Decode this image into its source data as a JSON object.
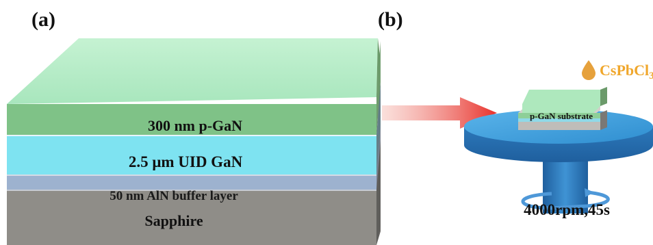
{
  "panel_a": {
    "label": "(a)",
    "layers": [
      {
        "name": "300 nm p-GaN"
      },
      {
        "name": "2.5 μm UID GaN"
      },
      {
        "name": "50 nm AlN buffer layer"
      },
      {
        "name": "Sapphire"
      }
    ]
  },
  "panel_b": {
    "label": "(b)",
    "precursor_main": "CsPbCl",
    "precursor_sub": "3",
    "substrate_label": "p-GaN substrate",
    "spin_params": "4000rpm,45s"
  },
  "colors": {
    "p_gan_top": "#b9ecc8",
    "p_gan_front": "#7fc287",
    "p_gan_side": "#6b9a6a",
    "uid_gan_front": "#7ee3f1",
    "uid_gan_side": "#5f8b9b",
    "aln_front": "#9db2cf",
    "aln_side": "#788294",
    "sapphire_front": "#8f8d88",
    "sapphire_side": "#666461",
    "arrow": "#e8392d",
    "droplet": "#e6a13c",
    "precursor_text": "#f0a72c",
    "spin_disk": "#2e86c6"
  }
}
